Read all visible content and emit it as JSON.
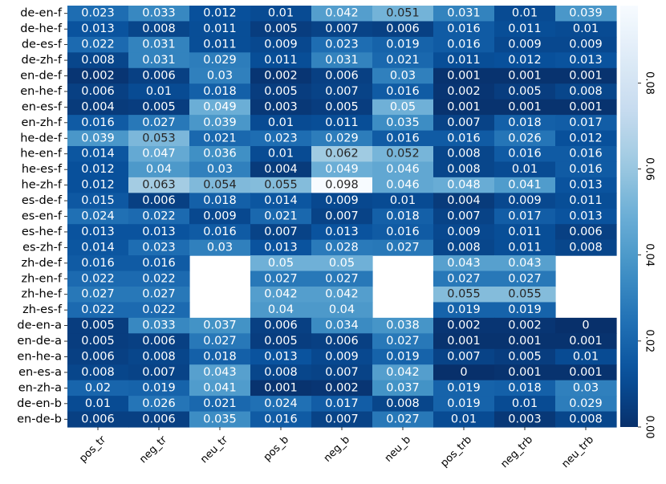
{
  "chart_data": {
    "type": "heatmap",
    "title": "",
    "xlabel": "",
    "ylabel": "",
    "colormap": "Blues_r",
    "x": [
      "pos_tr",
      "neg_tr",
      "neu_tr",
      "pos_b",
      "neg_b",
      "neu_b",
      "pos_trb",
      "neg_trb",
      "neu_trb"
    ],
    "y": [
      "de-en-f",
      "de-he-f",
      "de-es-f",
      "de-zh-f",
      "en-de-f",
      "en-he-f",
      "en-es-f",
      "en-zh-f",
      "he-de-f",
      "he-en-f",
      "he-es-f",
      "he-zh-f",
      "es-de-f",
      "es-en-f",
      "es-he-f",
      "es-zh-f",
      "zh-de-f",
      "zh-en-f",
      "zh-he-f",
      "zh-es-f",
      "de-en-a",
      "en-de-a",
      "en-he-a",
      "en-es-a",
      "en-zh-a",
      "de-en-b",
      "en-de-b"
    ],
    "values": [
      [
        "0.023",
        "0.033",
        "0.012",
        "0.01",
        "0.042",
        "0.051",
        "0.031",
        "0.01",
        "0.039"
      ],
      [
        "0.013",
        "0.008",
        "0.011",
        "0.005",
        "0.007",
        "0.006",
        "0.016",
        "0.011",
        "0.01"
      ],
      [
        "0.022",
        "0.031",
        "0.011",
        "0.009",
        "0.023",
        "0.019",
        "0.016",
        "0.009",
        "0.009"
      ],
      [
        "0.008",
        "0.031",
        "0.029",
        "0.011",
        "0.031",
        "0.021",
        "0.011",
        "0.012",
        "0.013"
      ],
      [
        "0.002",
        "0.006",
        "0.03",
        "0.002",
        "0.006",
        "0.03",
        "0.001",
        "0.001",
        "0.001"
      ],
      [
        "0.006",
        "0.01",
        "0.018",
        "0.005",
        "0.007",
        "0.016",
        "0.002",
        "0.005",
        "0.008"
      ],
      [
        "0.004",
        "0.005",
        "0.049",
        "0.003",
        "0.005",
        "0.05",
        "0.001",
        "0.001",
        "0.001"
      ],
      [
        "0.016",
        "0.027",
        "0.039",
        "0.01",
        "0.011",
        "0.035",
        "0.007",
        "0.018",
        "0.017"
      ],
      [
        "0.039",
        "0.053",
        "0.021",
        "0.023",
        "0.029",
        "0.016",
        "0.016",
        "0.026",
        "0.012"
      ],
      [
        "0.014",
        "0.047",
        "0.036",
        "0.01",
        "0.062",
        "0.052",
        "0.008",
        "0.016",
        "0.016"
      ],
      [
        "0.012",
        "0.04",
        "0.03",
        "0.004",
        "0.049",
        "0.046",
        "0.008",
        "0.01",
        "0.016"
      ],
      [
        "0.012",
        "0.063",
        "0.054",
        "0.055",
        "0.098",
        "0.046",
        "0.048",
        "0.041",
        "0.013"
      ],
      [
        "0.015",
        "0.006",
        "0.018",
        "0.014",
        "0.009",
        "0.01",
        "0.004",
        "0.009",
        "0.011"
      ],
      [
        "0.024",
        "0.022",
        "0.009",
        "0.021",
        "0.007",
        "0.018",
        "0.007",
        "0.017",
        "0.013"
      ],
      [
        "0.013",
        "0.013",
        "0.016",
        "0.007",
        "0.013",
        "0.016",
        "0.009",
        "0.011",
        "0.006"
      ],
      [
        "0.014",
        "0.023",
        "0.03",
        "0.013",
        "0.028",
        "0.027",
        "0.008",
        "0.011",
        "0.008"
      ],
      [
        "0.016",
        "0.016",
        null,
        "0.05",
        "0.05",
        null,
        "0.043",
        "0.043",
        null
      ],
      [
        "0.022",
        "0.022",
        null,
        "0.027",
        "0.027",
        null,
        "0.027",
        "0.027",
        null
      ],
      [
        "0.027",
        "0.027",
        null,
        "0.042",
        "0.042",
        null,
        "0.055",
        "0.055",
        null
      ],
      [
        "0.022",
        "0.022",
        null,
        "0.04",
        "0.04",
        null,
        "0.019",
        "0.019",
        null
      ],
      [
        "0.005",
        "0.033",
        "0.037",
        "0.006",
        "0.034",
        "0.038",
        "0.002",
        "0.002",
        "0"
      ],
      [
        "0.005",
        "0.006",
        "0.027",
        "0.005",
        "0.006",
        "0.027",
        "0.001",
        "0.001",
        "0.001"
      ],
      [
        "0.006",
        "0.008",
        "0.018",
        "0.013",
        "0.009",
        "0.019",
        "0.007",
        "0.005",
        "0.01"
      ],
      [
        "0.008",
        "0.007",
        "0.043",
        "0.008",
        "0.007",
        "0.042",
        "0",
        "0.001",
        "0.001"
      ],
      [
        "0.02",
        "0.019",
        "0.041",
        "0.001",
        "0.002",
        "0.037",
        "0.019",
        "0.018",
        "0.03"
      ],
      [
        "0.01",
        "0.026",
        "0.021",
        "0.024",
        "0.017",
        "0.008",
        "0.019",
        "0.01",
        "0.029"
      ],
      [
        "0.006",
        "0.006",
        "0.035",
        "0.016",
        "0.007",
        "0.027",
        "0.01",
        "0.003",
        "0.008"
      ]
    ],
    "colorbar": {
      "range": [
        0,
        0.098
      ],
      "ticks": [
        0,
        0.02,
        0.04,
        0.06,
        0.08
      ],
      "tick_labels": [
        "0.00",
        "0.02",
        "0.04",
        "0.06",
        "0.08"
      ],
      "tick_label_rotation": "vertical",
      "position": "right"
    }
  }
}
